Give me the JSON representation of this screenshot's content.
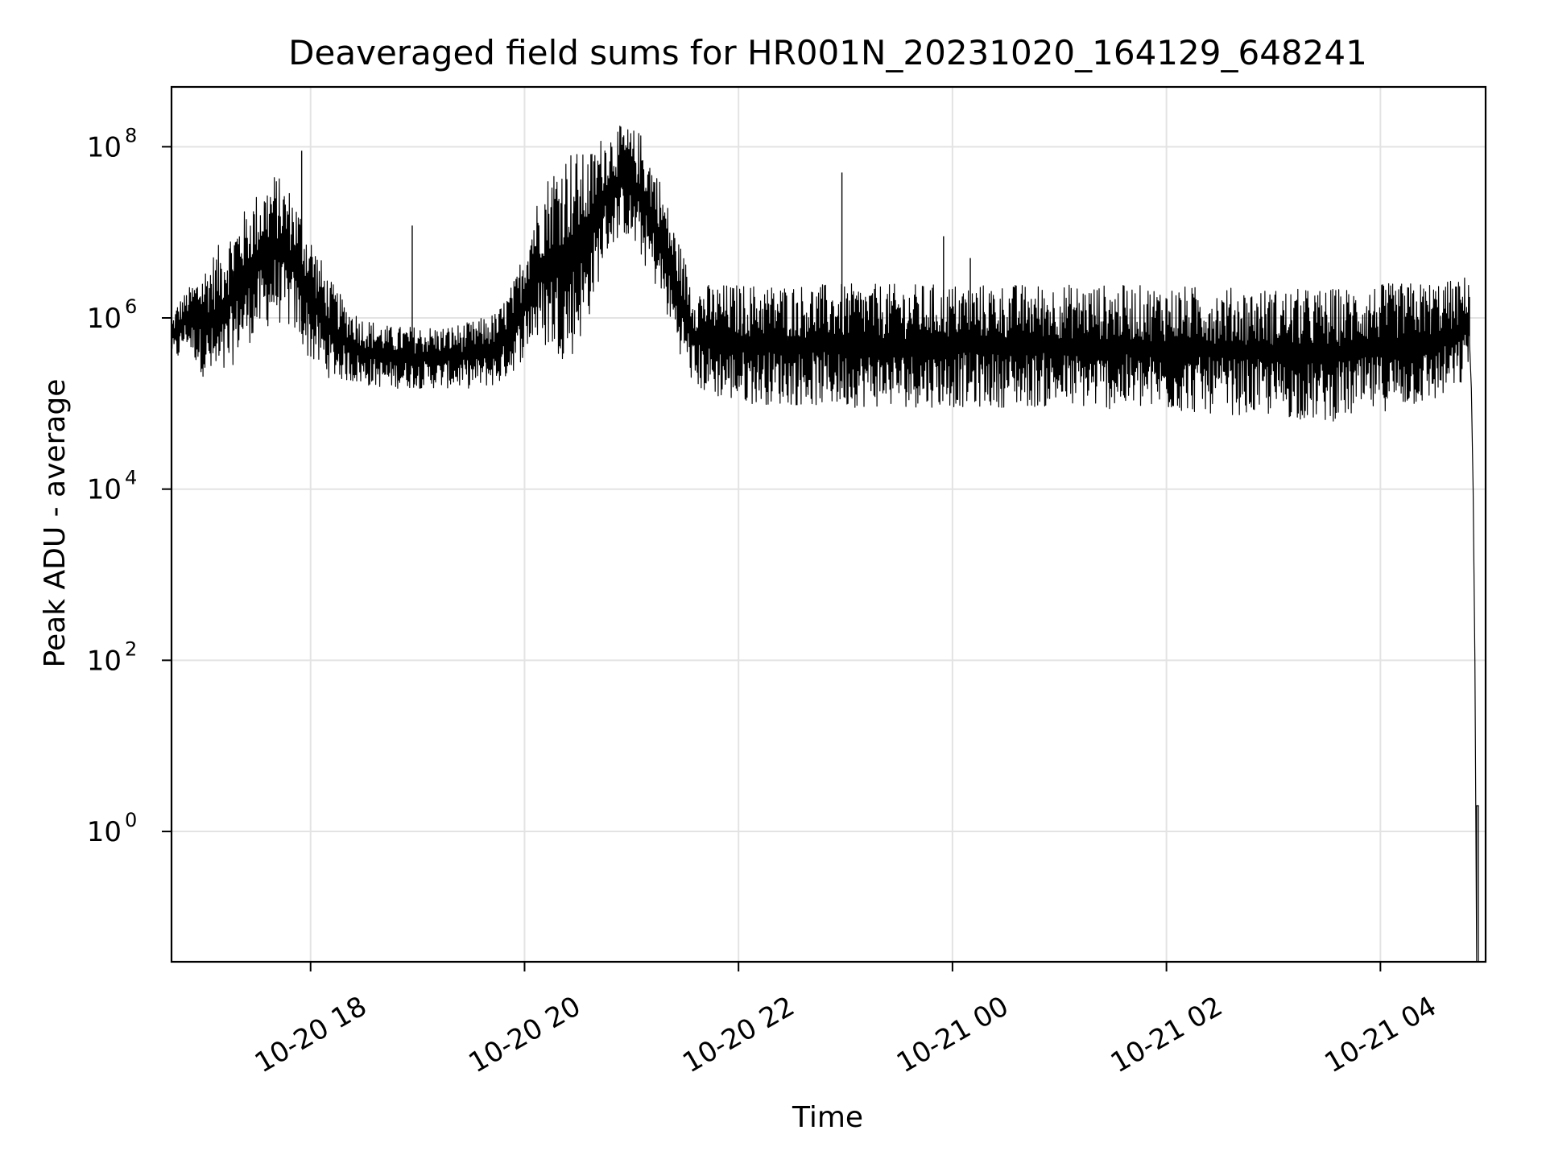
{
  "chart_data": {
    "type": "line",
    "title": "Deaveraged field sums for HR001N_20231020_164129_648241",
    "xlabel": "Time",
    "ylabel": "Peak ADU - average",
    "yscale": "log",
    "grid": true,
    "xlim": [
      "2023-10-20T16:42",
      "2023-10-21T04:59"
    ],
    "ylim": [
      0.03,
      500000000
    ],
    "x_ticks": [
      {
        "value": "2023-10-20T18:00",
        "label": "10-20 18"
      },
      {
        "value": "2023-10-20T20:00",
        "label": "10-20 20"
      },
      {
        "value": "2023-10-20T22:00",
        "label": "10-20 22"
      },
      {
        "value": "2023-10-21T00:00",
        "label": "10-21 00"
      },
      {
        "value": "2023-10-21T02:00",
        "label": "10-21 02"
      },
      {
        "value": "2023-10-21T04:00",
        "label": "10-21 04"
      }
    ],
    "y_ticks": [
      {
        "value": 1,
        "base": "10",
        "exp": "0"
      },
      {
        "value": 100,
        "base": "10",
        "exp": "2"
      },
      {
        "value": 10000,
        "base": "10",
        "exp": "4"
      },
      {
        "value": 1000000,
        "base": "10",
        "exp": "6"
      },
      {
        "value": 100000000,
        "base": "10",
        "exp": "8"
      }
    ],
    "series": [
      {
        "color": "#000000",
        "band_x": [
          "2023-10-20T16:42",
          "2023-10-20T16:45",
          "2023-10-20T16:50",
          "2023-10-20T17:00",
          "2023-10-20T17:10",
          "2023-10-20T17:20",
          "2023-10-20T17:30",
          "2023-10-20T17:40",
          "2023-10-20T17:50",
          "2023-10-20T18:00",
          "2023-10-20T18:10",
          "2023-10-20T18:20",
          "2023-10-20T18:30",
          "2023-10-20T18:45",
          "2023-10-20T19:00",
          "2023-10-20T19:15",
          "2023-10-20T19:30",
          "2023-10-20T19:45",
          "2023-10-20T19:55",
          "2023-10-20T20:05",
          "2023-10-20T20:15",
          "2023-10-20T20:25",
          "2023-10-20T20:35",
          "2023-10-20T20:45",
          "2023-10-20T20:55",
          "2023-10-20T21:05",
          "2023-10-20T21:15",
          "2023-10-20T21:25",
          "2023-10-20T21:35",
          "2023-10-20T21:45",
          "2023-10-20T22:00",
          "2023-10-20T23:00",
          "2023-10-21T00:00",
          "2023-10-21T01:00",
          "2023-10-21T02:00",
          "2023-10-21T03:00",
          "2023-10-21T03:30",
          "2023-10-21T04:00",
          "2023-10-21T04:30",
          "2023-10-21T04:45",
          "2023-10-21T04:50"
        ],
        "band_low": [
          400000,
          300000,
          500000,
          200000,
          150000,
          400000,
          600000,
          900000,
          700000,
          300000,
          200000,
          180000,
          160000,
          150000,
          150000,
          150000,
          150000,
          160000,
          250000,
          500000,
          400000,
          300000,
          800000,
          5000000,
          10000000,
          5000000,
          2000000,
          500000,
          150000,
          120000,
          100000,
          90000,
          90000,
          90000,
          80000,
          70000,
          60000,
          80000,
          100000,
          150000,
          300000
        ],
        "band_high": [
          900000,
          1500000,
          2000000,
          4000000,
          8000000,
          15000000,
          30000000,
          50000000,
          30000000,
          10000000,
          3000000,
          1500000,
          1000000,
          800000,
          800000,
          800000,
          900000,
          1200000,
          3000000,
          20000000,
          60000000,
          100000000,
          80000000,
          150000000,
          180000000,
          150000000,
          50000000,
          10000000,
          2500000,
          2500000,
          2500000,
          2500000,
          2500000,
          2500000,
          2400000,
          2200000,
          2200000,
          2500000,
          2700000,
          2800000,
          3500000
        ],
        "tail_x": [
          "2023-10-21T04:50",
          "2023-10-21T04:51",
          "2023-10-21T04:52",
          "2023-10-21T04:53",
          "2023-10-21T04:54",
          "2023-10-21T04:54",
          "2023-10-21T04:55",
          "2023-10-21T04:55"
        ],
        "tail_y": [
          500000,
          150000,
          10000,
          100,
          0.03,
          2,
          2,
          0.03
        ],
        "spikes": [
          {
            "x": "2023-10-20T17:55",
            "y": 90000000
          },
          {
            "x": "2023-10-20T18:57",
            "y": 12000000
          },
          {
            "x": "2023-10-20T22:58",
            "y": 50000000
          },
          {
            "x": "2023-10-20T23:55",
            "y": 9000000
          },
          {
            "x": "2023-10-21T00:10",
            "y": 5000000
          }
        ]
      }
    ]
  }
}
